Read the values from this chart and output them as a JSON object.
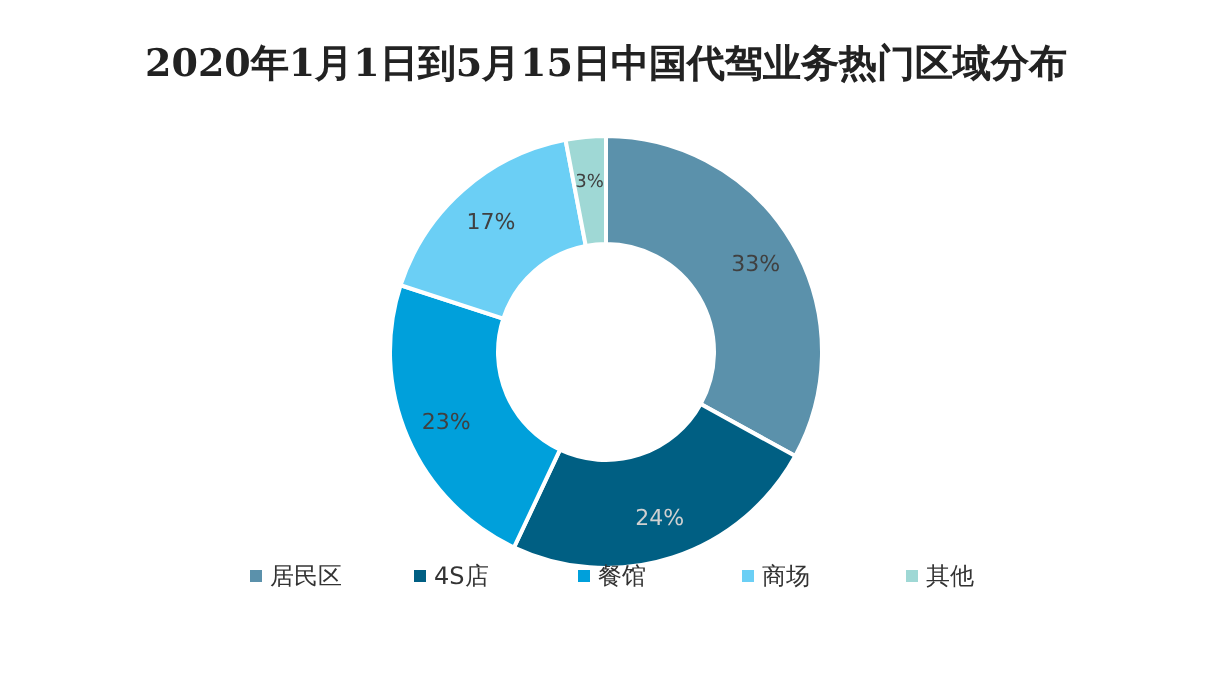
{
  "chart_data": {
    "type": "donut",
    "title": "2020年1月1日到5月15日中国代驾业务热门区域分布",
    "categories": [
      "居民区",
      "4S店",
      "餐馆",
      "商场",
      "其他"
    ],
    "values": [
      33,
      24,
      23,
      17,
      3
    ],
    "colors": [
      "#5b91ab",
      "#005f83",
      "#00a0db",
      "#6bcff5",
      "#9fd8d5"
    ],
    "value_labels": [
      "33%",
      "24%",
      "23%",
      "17%",
      "3%"
    ],
    "legend": "bottom"
  }
}
